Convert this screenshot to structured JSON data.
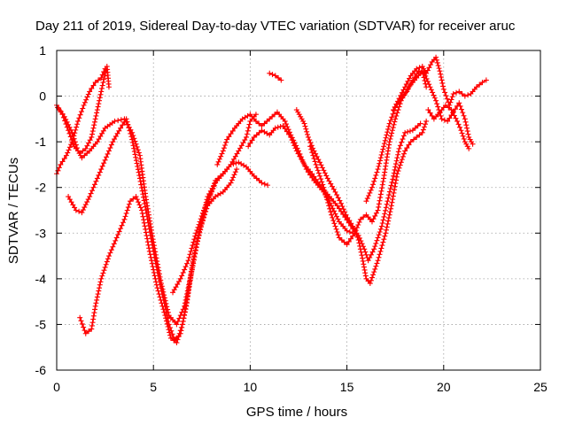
{
  "chart_data": {
    "type": "scatter",
    "title": "Day 211 of 2019, Sidereal Day-to-day VTEC variation (SDTVAR) for receiver aruc",
    "xlabel": "GPS time / hours",
    "ylabel": "SDTVAR / TECUs",
    "xlim": [
      0,
      25
    ],
    "ylim": [
      -6,
      1
    ],
    "xticks": [
      0,
      5,
      10,
      15,
      20,
      25
    ],
    "xtick_labels": [
      "0",
      "5",
      "10",
      "15",
      "20",
      "25"
    ],
    "yticks": [
      -6,
      -5,
      -4,
      -3,
      -2,
      -1,
      0,
      1
    ],
    "ytick_labels": [
      "-6",
      "-5",
      "-4",
      "-3",
      "-2",
      "-1",
      "0",
      "1"
    ],
    "grid": true,
    "marker": "+",
    "color": "#ff0000",
    "series": [
      {
        "name": "track-a",
        "points": [
          [
            0.05,
            -0.25
          ],
          [
            0.3,
            -0.4
          ],
          [
            0.6,
            -0.75
          ],
          [
            0.9,
            -1.1
          ],
          [
            1.2,
            -1.25
          ],
          [
            1.5,
            -1.15
          ],
          [
            1.8,
            -0.9
          ],
          [
            2.0,
            -0.5
          ],
          [
            2.2,
            -0.1
          ],
          [
            2.4,
            0.3
          ],
          [
            2.6,
            0.65
          ],
          [
            2.7,
            0.2
          ]
        ]
      },
      {
        "name": "track-b",
        "points": [
          [
            0.0,
            -1.7
          ],
          [
            0.2,
            -1.5
          ],
          [
            0.5,
            -1.3
          ],
          [
            0.8,
            -1.0
          ],
          [
            1.1,
            -0.55
          ],
          [
            1.4,
            -0.2
          ],
          [
            1.7,
            0.1
          ],
          [
            2.0,
            0.3
          ],
          [
            2.3,
            0.4
          ],
          [
            2.5,
            0.6
          ]
        ]
      },
      {
        "name": "track-c",
        "points": [
          [
            0.0,
            -0.2
          ],
          [
            0.4,
            -0.45
          ],
          [
            0.8,
            -0.8
          ],
          [
            1.1,
            -1.2
          ],
          [
            1.3,
            -1.35
          ],
          [
            1.7,
            -1.2
          ],
          [
            2.1,
            -1.0
          ],
          [
            2.5,
            -0.7
          ],
          [
            3.0,
            -0.55
          ],
          [
            3.5,
            -0.5
          ],
          [
            3.9,
            -0.8
          ],
          [
            4.3,
            -1.3
          ],
          [
            4.6,
            -2.2
          ],
          [
            5.0,
            -3.2
          ],
          [
            5.4,
            -4.1
          ],
          [
            5.8,
            -4.8
          ],
          [
            6.2,
            -5.0
          ],
          [
            6.6,
            -4.6
          ],
          [
            7.0,
            -3.8
          ],
          [
            7.4,
            -2.9
          ],
          [
            7.8,
            -2.2
          ],
          [
            8.2,
            -1.9
          ],
          [
            8.6,
            -1.7
          ],
          [
            9.0,
            -1.5
          ],
          [
            9.4,
            -1.2
          ],
          [
            9.8,
            -0.9
          ],
          [
            10.0,
            -0.55
          ],
          [
            10.3,
            -0.4
          ]
        ]
      },
      {
        "name": "track-d",
        "points": [
          [
            0.6,
            -2.2
          ],
          [
            1.0,
            -2.5
          ],
          [
            1.3,
            -2.55
          ],
          [
            1.7,
            -2.2
          ],
          [
            2.1,
            -1.8
          ],
          [
            2.5,
            -1.4
          ],
          [
            2.9,
            -1.0
          ],
          [
            3.3,
            -0.7
          ],
          [
            3.6,
            -0.5
          ],
          [
            3.9,
            -0.95
          ],
          [
            4.3,
            -1.8
          ],
          [
            4.7,
            -2.7
          ],
          [
            5.1,
            -3.6
          ],
          [
            5.5,
            -4.4
          ],
          [
            5.8,
            -5.0
          ],
          [
            6.1,
            -5.35
          ],
          [
            6.4,
            -5.2
          ],
          [
            6.7,
            -4.6
          ],
          [
            7.0,
            -3.7
          ],
          [
            7.4,
            -2.9
          ],
          [
            7.8,
            -2.4
          ],
          [
            8.2,
            -2.2
          ],
          [
            8.6,
            -2.1
          ],
          [
            9.0,
            -1.9
          ],
          [
            9.3,
            -1.6
          ]
        ]
      },
      {
        "name": "track-e",
        "points": [
          [
            1.2,
            -4.85
          ],
          [
            1.5,
            -5.2
          ],
          [
            1.8,
            -5.1
          ],
          [
            2.0,
            -4.6
          ],
          [
            2.3,
            -4.0
          ],
          [
            2.7,
            -3.5
          ],
          [
            3.1,
            -3.1
          ],
          [
            3.5,
            -2.7
          ],
          [
            3.8,
            -2.3
          ],
          [
            4.1,
            -2.2
          ],
          [
            4.4,
            -2.5
          ],
          [
            4.8,
            -3.4
          ],
          [
            5.2,
            -4.2
          ],
          [
            5.6,
            -4.8
          ],
          [
            5.9,
            -5.3
          ],
          [
            6.2,
            -5.4
          ],
          [
            6.5,
            -5.0
          ],
          [
            6.8,
            -4.3
          ],
          [
            7.1,
            -3.5
          ],
          [
            7.5,
            -2.8
          ],
          [
            7.9,
            -2.2
          ],
          [
            8.2,
            -1.9
          ]
        ]
      },
      {
        "name": "track-f",
        "points": [
          [
            6.0,
            -4.3
          ],
          [
            6.4,
            -4.0
          ],
          [
            6.8,
            -3.6
          ],
          [
            7.2,
            -3.0
          ],
          [
            7.6,
            -2.5
          ],
          [
            8.0,
            -2.1
          ],
          [
            8.2,
            -1.85
          ],
          [
            8.6,
            -1.7
          ],
          [
            9.0,
            -1.5
          ],
          [
            9.4,
            -1.45
          ],
          [
            9.8,
            -1.55
          ],
          [
            10.2,
            -1.75
          ],
          [
            10.6,
            -1.9
          ],
          [
            10.9,
            -1.95
          ]
        ]
      },
      {
        "name": "track-g",
        "points": [
          [
            8.3,
            -1.5
          ],
          [
            8.6,
            -1.2
          ],
          [
            8.8,
            -0.95
          ],
          [
            9.2,
            -0.7
          ],
          [
            9.6,
            -0.5
          ],
          [
            10.0,
            -0.4
          ],
          [
            10.3,
            -0.55
          ],
          [
            10.6,
            -0.65
          ],
          [
            11.0,
            -0.5
          ],
          [
            11.4,
            -0.35
          ],
          [
            11.8,
            -0.55
          ],
          [
            12.1,
            -0.85
          ],
          [
            12.5,
            -1.2
          ],
          [
            12.9,
            -1.6
          ],
          [
            13.3,
            -1.85
          ],
          [
            13.8,
            -2.1
          ],
          [
            14.2,
            -2.4
          ],
          [
            14.6,
            -2.75
          ],
          [
            15.0,
            -2.95
          ],
          [
            15.3,
            -3.0
          ]
        ]
      },
      {
        "name": "track-h",
        "points": [
          [
            9.9,
            -1.1
          ],
          [
            10.2,
            -0.9
          ],
          [
            10.6,
            -0.75
          ],
          [
            11.0,
            -0.85
          ],
          [
            11.3,
            -0.7
          ],
          [
            11.7,
            -0.65
          ],
          [
            12.1,
            -0.9
          ],
          [
            12.4,
            -1.2
          ],
          [
            12.8,
            -1.5
          ],
          [
            13.2,
            -1.7
          ],
          [
            13.6,
            -1.95
          ],
          [
            14.1,
            -2.2
          ],
          [
            14.5,
            -2.4
          ],
          [
            14.9,
            -2.65
          ],
          [
            15.3,
            -2.9
          ],
          [
            15.6,
            -3.05
          ],
          [
            15.9,
            -3.35
          ],
          [
            16.1,
            -3.6
          ],
          [
            16.4,
            -3.35
          ],
          [
            16.8,
            -2.85
          ],
          [
            17.1,
            -2.3
          ],
          [
            17.4,
            -1.75
          ],
          [
            17.7,
            -1.15
          ],
          [
            18.0,
            -0.8
          ],
          [
            18.4,
            -0.75
          ],
          [
            18.8,
            -0.6
          ]
        ]
      },
      {
        "name": "track-i",
        "points": [
          [
            11.0,
            0.5
          ],
          [
            11.3,
            0.45
          ],
          [
            11.6,
            0.35
          ]
        ]
      },
      {
        "name": "track-j",
        "points": [
          [
            12.4,
            -0.3
          ],
          [
            12.6,
            -0.45
          ],
          [
            12.8,
            -0.6
          ],
          [
            13.0,
            -0.9
          ],
          [
            13.3,
            -1.2
          ],
          [
            13.6,
            -1.45
          ],
          [
            14.0,
            -1.8
          ],
          [
            14.4,
            -2.1
          ],
          [
            14.7,
            -2.35
          ],
          [
            14.95,
            -2.6
          ],
          [
            15.3,
            -2.85
          ],
          [
            15.6,
            -3.15
          ],
          [
            15.8,
            -3.55
          ],
          [
            16.0,
            -4.0
          ],
          [
            16.2,
            -4.1
          ],
          [
            16.6,
            -3.6
          ],
          [
            17.0,
            -3.0
          ],
          [
            17.3,
            -2.4
          ],
          [
            17.6,
            -1.7
          ],
          [
            18.0,
            -1.2
          ],
          [
            18.3,
            -1.0
          ],
          [
            18.6,
            -0.9
          ],
          [
            18.9,
            -0.8
          ],
          [
            19.1,
            -0.55
          ]
        ]
      },
      {
        "name": "track-k",
        "points": [
          [
            13.1,
            -1.1
          ],
          [
            13.4,
            -1.5
          ],
          [
            13.8,
            -2.0
          ],
          [
            14.2,
            -2.6
          ],
          [
            14.6,
            -3.1
          ],
          [
            15.0,
            -3.25
          ],
          [
            15.4,
            -3.0
          ],
          [
            15.7,
            -2.7
          ],
          [
            16.0,
            -2.6
          ],
          [
            16.3,
            -2.75
          ],
          [
            16.6,
            -2.5
          ],
          [
            16.9,
            -1.8
          ],
          [
            17.2,
            -1.0
          ],
          [
            17.5,
            -0.5
          ],
          [
            17.8,
            -0.1
          ],
          [
            18.2,
            0.2
          ],
          [
            18.6,
            0.4
          ],
          [
            18.9,
            0.55
          ],
          [
            19.1,
            0.2
          ]
        ]
      },
      {
        "name": "track-l",
        "points": [
          [
            16.0,
            -2.3
          ],
          [
            16.3,
            -2.0
          ],
          [
            16.6,
            -1.6
          ],
          [
            16.9,
            -1.1
          ],
          [
            17.2,
            -0.6
          ],
          [
            17.5,
            -0.25
          ],
          [
            17.8,
            -0.05
          ],
          [
            18.1,
            0.1
          ],
          [
            18.4,
            0.35
          ],
          [
            18.7,
            0.55
          ],
          [
            19.0,
            0.5
          ],
          [
            19.3,
            0.2
          ],
          [
            19.6,
            -0.1
          ],
          [
            19.9,
            -0.5
          ],
          [
            20.2,
            -0.55
          ],
          [
            20.5,
            -0.35
          ],
          [
            20.8,
            -0.15
          ],
          [
            21.1,
            -0.5
          ],
          [
            21.3,
            -0.9
          ],
          [
            21.5,
            -1.05
          ]
        ]
      },
      {
        "name": "track-m",
        "points": [
          [
            17.4,
            -0.3
          ],
          [
            17.7,
            -0.05
          ],
          [
            18.0,
            0.2
          ],
          [
            18.3,
            0.45
          ],
          [
            18.6,
            0.6
          ],
          [
            18.9,
            0.65
          ],
          [
            19.1,
            0.5
          ],
          [
            19.4,
            0.75
          ],
          [
            19.6,
            0.85
          ],
          [
            19.8,
            0.55
          ],
          [
            20.0,
            0.15
          ],
          [
            20.3,
            -0.2
          ],
          [
            20.5,
            0.05
          ],
          [
            20.8,
            0.1
          ],
          [
            21.1,
            0.0
          ],
          [
            21.4,
            0.05
          ],
          [
            21.7,
            0.2
          ],
          [
            22.0,
            0.3
          ],
          [
            22.2,
            0.35
          ]
        ]
      },
      {
        "name": "track-n",
        "points": [
          [
            19.2,
            -0.3
          ],
          [
            19.5,
            -0.5
          ],
          [
            19.8,
            -0.35
          ],
          [
            20.1,
            -0.2
          ],
          [
            20.4,
            -0.3
          ],
          [
            20.7,
            -0.55
          ],
          [
            20.9,
            -0.75
          ],
          [
            21.1,
            -1.0
          ],
          [
            21.3,
            -1.15
          ]
        ]
      }
    ]
  }
}
